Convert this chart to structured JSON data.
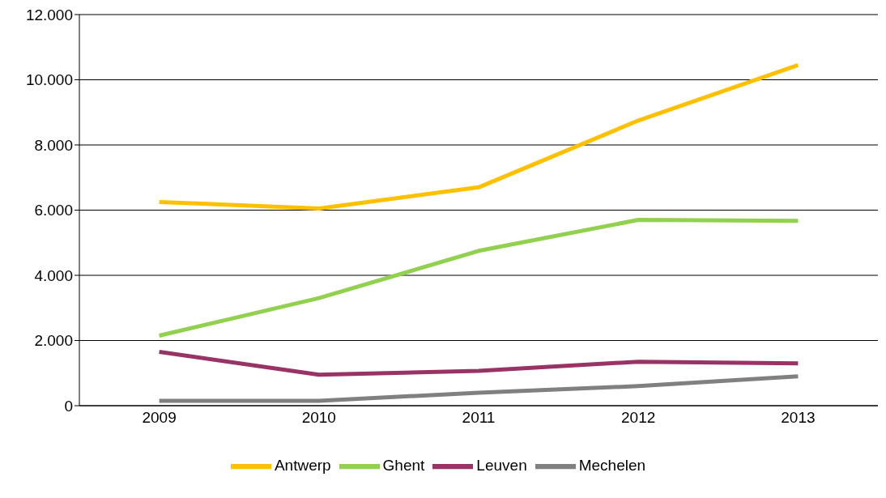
{
  "chart_data": {
    "type": "line",
    "categories": [
      "2009",
      "2010",
      "2011",
      "2012",
      "2013"
    ],
    "series": [
      {
        "name": "Antwerp",
        "color": "#ffc000",
        "values": [
          6250,
          6050,
          6700,
          8750,
          10450
        ]
      },
      {
        "name": "Ghent",
        "color": "#92d050",
        "values": [
          2150,
          3300,
          4750,
          5700,
          5670
        ]
      },
      {
        "name": "Leuven",
        "color": "#993366",
        "values": [
          1650,
          950,
          1070,
          1350,
          1300
        ]
      },
      {
        "name": "Mechelen",
        "color": "#808080",
        "values": [
          150,
          150,
          400,
          600,
          900
        ]
      }
    ],
    "ylim": [
      0,
      12000
    ],
    "yticks": [
      {
        "value": 0,
        "label": "0"
      },
      {
        "value": 2000,
        "label": "2.000"
      },
      {
        "value": 4000,
        "label": "4.000"
      },
      {
        "value": 6000,
        "label": "6.000"
      },
      {
        "value": 8000,
        "label": "8.000"
      },
      {
        "value": 10000,
        "label": "10.000"
      },
      {
        "value": 12000,
        "label": "12.000"
      }
    ],
    "grid": "y",
    "legend": "bottom"
  }
}
